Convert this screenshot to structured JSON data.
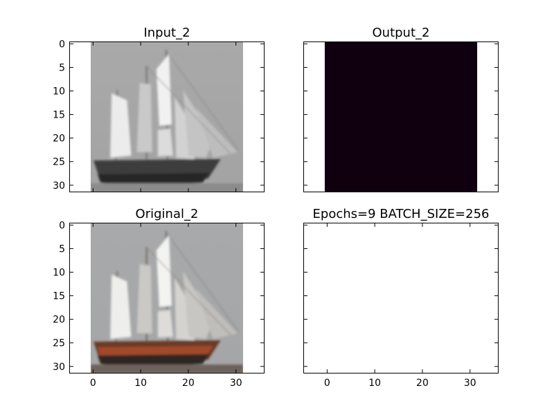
{
  "figure": {
    "background": "#ffffff",
    "shared_xlim": [
      -5,
      36
    ],
    "shared_ylim_inverted": [
      31.5,
      -0.5
    ],
    "xticks": [
      0,
      10,
      20,
      30
    ],
    "yticks": [
      0,
      5,
      10,
      15,
      20,
      25,
      30
    ]
  },
  "chart_data": [
    {
      "type": "image",
      "title": "Input_2",
      "position": "top-left",
      "image_extent": [
        -0.5,
        31.5,
        31.5,
        -0.5
      ],
      "colormap": "gray",
      "content": "grayscale sailing ship (schooner) photo",
      "xticks": [
        0,
        10,
        20,
        30
      ],
      "yticks": [
        0,
        5,
        10,
        15,
        20,
        25,
        30
      ],
      "show_xtick_labels": false,
      "show_ytick_labels": true
    },
    {
      "type": "image",
      "title": "Output_2",
      "position": "top-right",
      "image_extent": [
        -0.5,
        31.5,
        31.5,
        -0.5
      ],
      "fill_color": "#10000f",
      "content": "uniform dark image",
      "xticks": [
        0,
        10,
        20,
        30
      ],
      "yticks": [
        0,
        5,
        10,
        15,
        20,
        25,
        30
      ],
      "show_xtick_labels": false,
      "show_ytick_labels": false
    },
    {
      "type": "image",
      "title": "Original_2",
      "position": "bottom-left",
      "image_extent": [
        -0.5,
        31.5,
        31.5,
        -0.5
      ],
      "colormap": "rgb",
      "content": "color sailing ship (schooner) photo with red-brown hull",
      "xticks": [
        0,
        10,
        20,
        30
      ],
      "yticks": [
        0,
        5,
        10,
        15,
        20,
        25,
        30
      ],
      "show_xtick_labels": true,
      "show_ytick_labels": true
    },
    {
      "type": "empty",
      "title": "Epochs=9 BATCH_SIZE=256",
      "position": "bottom-right",
      "xticks": [
        0,
        10,
        20,
        30
      ],
      "yticks": [
        0,
        5,
        10,
        15,
        20,
        25,
        30
      ],
      "show_xtick_labels": true,
      "show_ytick_labels": false
    }
  ]
}
